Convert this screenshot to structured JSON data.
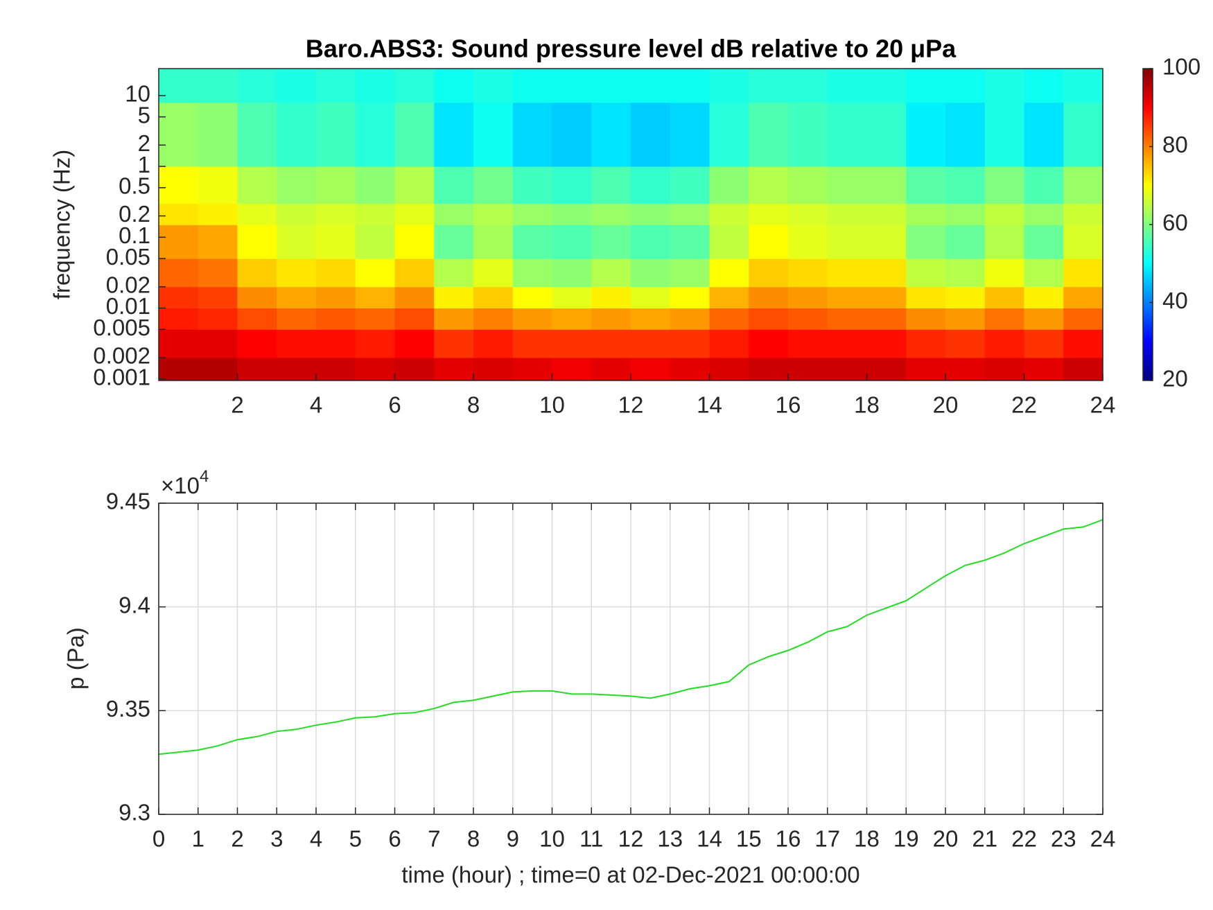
{
  "chart_data": [
    {
      "type": "heatmap",
      "title": "Baro.ABS3: Sound pressure level dB relative to 20 μPa",
      "ylabel": "frequency (Hz)",
      "xlim": [
        0,
        24
      ],
      "xticks": [
        2,
        4,
        6,
        8,
        10,
        12,
        14,
        16,
        18,
        20,
        22,
        24
      ],
      "ylim": [
        0.00095,
        24
      ],
      "log_y": true,
      "yticks": [
        0.001,
        0.002,
        0.005,
        0.01,
        0.02,
        0.05,
        0.1,
        0.2,
        0.5,
        1,
        2,
        5,
        10
      ],
      "x_edges": [
        0,
        1,
        2,
        3,
        4,
        5,
        6,
        7,
        8,
        9,
        10,
        11,
        12,
        13,
        14,
        15,
        16,
        17,
        18,
        19,
        20,
        21,
        22,
        23,
        24
      ],
      "y_edges": [
        0.00095,
        0.002,
        0.005,
        0.01,
        0.02,
        0.05,
        0.15,
        0.3,
        1,
        8,
        24
      ],
      "values": [
        [
          96,
          96,
          94,
          94,
          94,
          93,
          94,
          92,
          93,
          92,
          91,
          92,
          91,
          92,
          93,
          94,
          94,
          94,
          94,
          92,
          92,
          93,
          92,
          94
        ],
        [
          92,
          92,
          90,
          89,
          89,
          88,
          90,
          86,
          88,
          86,
          86,
          86,
          86,
          86,
          88,
          90,
          89,
          89,
          89,
          87,
          86,
          88,
          86,
          89
        ],
        [
          88,
          87,
          84,
          82,
          83,
          82,
          84,
          78,
          80,
          78,
          77,
          78,
          77,
          78,
          82,
          84,
          83,
          82,
          82,
          79,
          78,
          81,
          78,
          82
        ],
        [
          86,
          85,
          79,
          77,
          78,
          76,
          79,
          71,
          74,
          70,
          68,
          71,
          68,
          70,
          76,
          79,
          78,
          77,
          77,
          72,
          71,
          75,
          71,
          77
        ],
        [
          82,
          81,
          74,
          72,
          73,
          70,
          74,
          64,
          68,
          62,
          61,
          64,
          61,
          62,
          70,
          74,
          73,
          72,
          72,
          65,
          64,
          69,
          64,
          72
        ],
        [
          78,
          77,
          70,
          67,
          68,
          65,
          70,
          58,
          63,
          57,
          56,
          58,
          56,
          57,
          65,
          70,
          68,
          67,
          67,
          60,
          58,
          64,
          58,
          67
        ],
        [
          72,
          71,
          68,
          66,
          67,
          66,
          68,
          62,
          64,
          62,
          61,
          62,
          61,
          62,
          66,
          68,
          67,
          66,
          66,
          63,
          62,
          65,
          62,
          66
        ],
        [
          70,
          69,
          64,
          62,
          63,
          61,
          64,
          56,
          59,
          55,
          54,
          56,
          54,
          55,
          61,
          64,
          63,
          62,
          62,
          57,
          56,
          60,
          56,
          62
        ],
        [
          62,
          61,
          56,
          54,
          55,
          53,
          56,
          48,
          51,
          47,
          46,
          48,
          46,
          47,
          53,
          56,
          55,
          54,
          54,
          49,
          48,
          52,
          48,
          54
        ],
        [
          54,
          54,
          53,
          52,
          53,
          52,
          53,
          51,
          52,
          51,
          51,
          51,
          51,
          51,
          52,
          53,
          53,
          52,
          52,
          51,
          51,
          52,
          51,
          52
        ]
      ],
      "colormap": "jet",
      "clim": [
        20,
        100
      ],
      "cticks": [
        20,
        40,
        60,
        80,
        100
      ]
    },
    {
      "type": "line",
      "xlabel": "time (hour) ; time=0 at 02-Dec-2021 00:00:00",
      "ylabel": "p (Pa)",
      "multiplier": {
        "base_label": "×10",
        "exponent": 4
      },
      "xlim": [
        0,
        24
      ],
      "xticks": [
        0,
        1,
        2,
        3,
        4,
        5,
        6,
        7,
        8,
        9,
        10,
        11,
        12,
        13,
        14,
        15,
        16,
        17,
        18,
        19,
        20,
        21,
        22,
        23,
        24
      ],
      "ylim": [
        93000,
        94500
      ],
      "yticks": [
        {
          "value": 93000,
          "label": "9.3"
        },
        {
          "value": 93500,
          "label": "9.35"
        },
        {
          "value": 94000,
          "label": "9.4"
        },
        {
          "value": 94500,
          "label": "9.45"
        }
      ],
      "grid": true,
      "color": "#22dd22",
      "x": [
        0,
        0.5,
        1,
        1.5,
        2,
        2.5,
        3,
        3.5,
        4,
        4.5,
        5,
        5.5,
        6,
        6.5,
        7,
        7.5,
        8,
        8.5,
        9,
        9.5,
        10,
        10.5,
        11,
        11.5,
        12,
        12.5,
        13,
        13.5,
        14,
        14.5,
        15,
        15.5,
        16,
        16.5,
        17,
        17.5,
        18,
        18.5,
        19,
        19.5,
        20,
        20.5,
        21,
        21.5,
        22,
        22.5,
        23,
        23.5,
        24
      ],
      "values": [
        93290,
        93300,
        93310,
        93330,
        93360,
        93375,
        93400,
        93410,
        93430,
        93445,
        93465,
        93470,
        93485,
        93490,
        93510,
        93540,
        93550,
        93570,
        93590,
        93595,
        93595,
        93580,
        93580,
        93575,
        93570,
        93560,
        93580,
        93605,
        93620,
        93640,
        93720,
        93760,
        93790,
        93830,
        93880,
        93905,
        93960,
        93995,
        94030,
        94090,
        94150,
        94200,
        94225,
        94260,
        94305,
        94340,
        94375,
        94385,
        94420
      ]
    }
  ]
}
